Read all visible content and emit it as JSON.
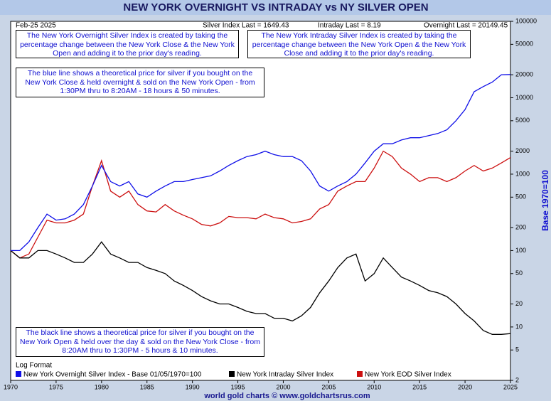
{
  "chart_data": {
    "type": "line",
    "title": "NEW YORK OVERNIGHT VS INTRADAY vs NY SILVER OPEN",
    "date_label": "Feb-25  2025",
    "stats": [
      "Silver Index Last = 1649.43",
      "Intraday Last = 8.19",
      "Overnight Last = 20149.45"
    ],
    "annotations": [
      "The New York Overnight Silver Index is created by taking the percentage change between the New York Close & the New York Open and adding it to the prior day's reading.",
      "The New York Intraday Silver Index is created by taking the percentage change between the New York Open & the New York Close and adding it to the prior day's reading.",
      "The blue line shows a theoretical price for silver if you bought on the New York Close & held overnight & sold on the New York Open - from 1:30PM thru to 8:20AM - 18 hours & 50 minutes.",
      "The black line shows a theoretical price for silver if you bought on the New York Open & held over the day & sold on the New York Close - from 8:20AM thru to 1:30PM - 5 hours & 10 minutes."
    ],
    "scale_note": "Log Format",
    "y_label": "Base 1970=100",
    "footer": "world gold charts © www.goldchartsrus.com",
    "log_scale": true,
    "x": [
      1970,
      1971,
      1972,
      1973,
      1974,
      1975,
      1976,
      1977,
      1978,
      1979,
      1980,
      1981,
      1982,
      1983,
      1984,
      1985,
      1986,
      1987,
      1988,
      1989,
      1990,
      1991,
      1992,
      1993,
      1994,
      1995,
      1996,
      1997,
      1998,
      1999,
      2000,
      2001,
      2002,
      2003,
      2004,
      2005,
      2006,
      2007,
      2008,
      2009,
      2010,
      2011,
      2012,
      2013,
      2014,
      2015,
      2016,
      2017,
      2018,
      2019,
      2020,
      2021,
      2022,
      2023,
      2024,
      2025
    ],
    "series": [
      {
        "name": "New York Overnight Silver Index - Base 01/05/1970=100",
        "color": "#1010e8",
        "values": [
          100,
          100,
          130,
          200,
          300,
          250,
          260,
          300,
          400,
          700,
          1300,
          800,
          700,
          800,
          550,
          500,
          600,
          700,
          800,
          800,
          850,
          900,
          950,
          1100,
          1300,
          1500,
          1700,
          1800,
          2000,
          1800,
          1700,
          1700,
          1500,
          1100,
          700,
          600,
          700,
          800,
          1000,
          1400,
          2000,
          2500,
          2500,
          2800,
          3000,
          3000,
          3200,
          3400,
          3800,
          5000,
          7000,
          12000,
          14000,
          16000,
          20000,
          20149.45
        ]
      },
      {
        "name": "New York Intraday Silver Index",
        "color": "#000000",
        "values": [
          100,
          80,
          80,
          100,
          100,
          90,
          80,
          70,
          70,
          90,
          130,
          90,
          80,
          70,
          70,
          60,
          55,
          50,
          40,
          35,
          30,
          25,
          22,
          20,
          20,
          18,
          16,
          15,
          15,
          13,
          13,
          12,
          14,
          18,
          28,
          40,
          60,
          80,
          90,
          40,
          50,
          80,
          60,
          45,
          40,
          35,
          30,
          28,
          25,
          20,
          15,
          12,
          9,
          8,
          8,
          8.19
        ]
      },
      {
        "name": "New York EOD Silver Index",
        "color": "#cc1010",
        "values": [
          100,
          80,
          90,
          150,
          250,
          230,
          230,
          250,
          300,
          700,
          1500,
          600,
          500,
          600,
          400,
          330,
          320,
          400,
          330,
          290,
          260,
          220,
          210,
          230,
          280,
          270,
          270,
          260,
          300,
          270,
          260,
          230,
          240,
          260,
          350,
          400,
          600,
          700,
          800,
          800,
          1200,
          2000,
          1700,
          1200,
          1000,
          800,
          900,
          900,
          800,
          900,
          1100,
          1300,
          1100,
          1200,
          1400,
          1649.43
        ]
      }
    ],
    "xlim": [
      1970,
      2025
    ],
    "xticks": [
      1970,
      1975,
      1980,
      1985,
      1990,
      1995,
      2000,
      2005,
      2010,
      2015,
      2020,
      2025
    ],
    "ylim": [
      2,
      100000
    ],
    "yticks": [
      2,
      5,
      10,
      20,
      50,
      100,
      200,
      500,
      1000,
      2000,
      5000,
      10000,
      20000,
      50000,
      100000
    ],
    "grid": false
  }
}
